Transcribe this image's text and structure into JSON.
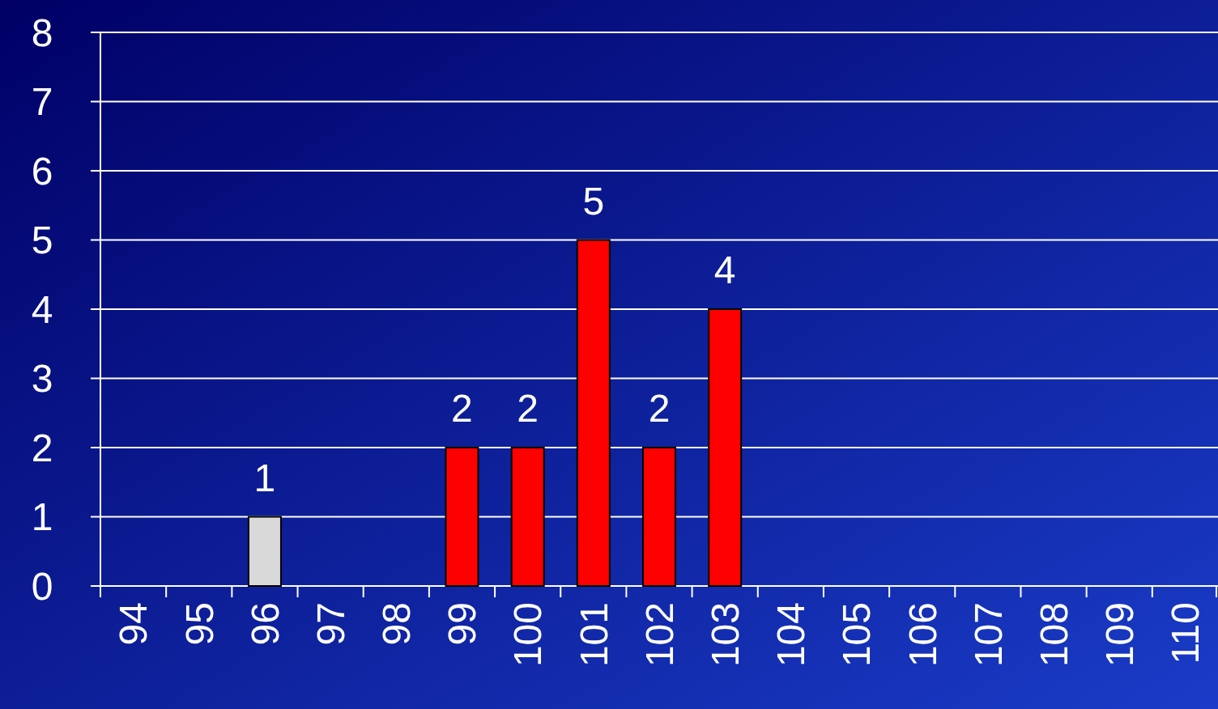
{
  "chart_data": {
    "type": "bar",
    "categories": [
      "94",
      "95",
      "96",
      "97",
      "98",
      "99",
      "100",
      "101",
      "102",
      "103",
      "104",
      "105",
      "106",
      "107",
      "108",
      "109",
      "110"
    ],
    "values": [
      0,
      0,
      1,
      0,
      0,
      2,
      2,
      5,
      2,
      4,
      0,
      0,
      0,
      0,
      0,
      0,
      0
    ],
    "value_labels": [
      null,
      null,
      "1",
      null,
      null,
      "2",
      "2",
      "5",
      "2",
      "4",
      null,
      null,
      null,
      null,
      null,
      null,
      null
    ],
    "colors": [
      "#ff0000",
      "#ff0000",
      "#d9d9d9",
      "#ff0000",
      "#ff0000",
      "#ff0000",
      "#ff0000",
      "#ff0000",
      "#ff0000",
      "#ff0000",
      "#ff0000",
      "#ff0000",
      "#ff0000",
      "#ff0000",
      "#ff0000",
      "#ff0000",
      "#ff0000"
    ],
    "ylim": [
      0,
      8
    ],
    "yticks": [
      0,
      1,
      2,
      3,
      4,
      5,
      6,
      7,
      8
    ],
    "grid": "y"
  }
}
